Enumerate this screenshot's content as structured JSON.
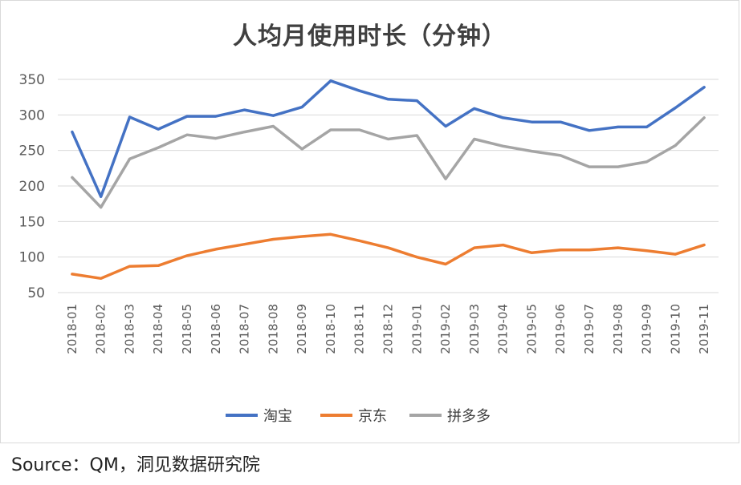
{
  "chart_data": {
    "type": "line",
    "title": "人均月使用时长（分钟）",
    "xlabel": "",
    "ylabel": "",
    "ylim": [
      50,
      350
    ],
    "yticks": [
      50,
      100,
      150,
      200,
      250,
      300,
      350
    ],
    "grid": true,
    "legend_position": "bottom",
    "categories": [
      "2018-01",
      "2018-02",
      "2018-03",
      "2018-04",
      "2018-05",
      "2018-06",
      "2018-07",
      "2018-08",
      "2018-09",
      "2018-10",
      "2018-11",
      "2018-12",
      "2019-01",
      "2019-02",
      "2019-03",
      "2019-04",
      "2019-05",
      "2019-06",
      "2019-07",
      "2019-08",
      "2019-09",
      "2019-10",
      "2019-11"
    ],
    "series": [
      {
        "name": "淘宝",
        "color": "#4472c4",
        "values": [
          276,
          185,
          297,
          280,
          298,
          298,
          307,
          299,
          311,
          348,
          334,
          322,
          320,
          284,
          309,
          296,
          290,
          290,
          278,
          283,
          283,
          310,
          339
        ]
      },
      {
        "name": "京东",
        "color": "#ed7d31",
        "values": [
          76,
          70,
          87,
          88,
          102,
          111,
          118,
          125,
          129,
          132,
          123,
          113,
          100,
          90,
          113,
          117,
          106,
          110,
          110,
          113,
          109,
          104,
          117
        ]
      },
      {
        "name": "拼多多",
        "color": "#a5a5a5",
        "values": [
          212,
          170,
          238,
          254,
          272,
          267,
          276,
          284,
          252,
          279,
          279,
          266,
          271,
          210,
          266,
          256,
          249,
          243,
          227,
          227,
          234,
          257,
          296
        ]
      }
    ]
  },
  "source": "Source：QM，洞见数据研究院"
}
